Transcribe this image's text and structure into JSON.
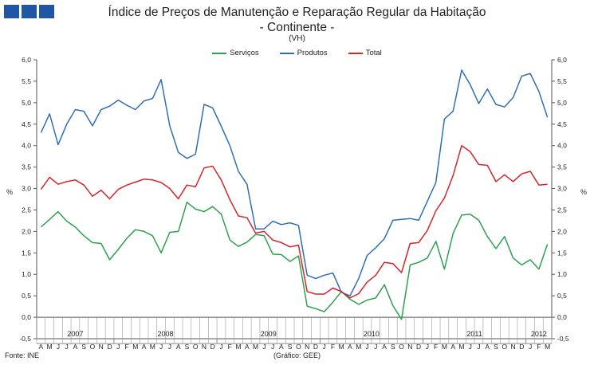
{
  "header": {
    "title": "Índice de Preços de Manutenção e Reparação Regular da Habitação",
    "subtitle": "- Continente -",
    "unit": "(VH)"
  },
  "footer": {
    "source": "Fonte: INE",
    "credit": "(Gráfico: GEE)"
  },
  "colors": {
    "brand": "#1f57a4",
    "servicos": "#2ea04f",
    "produtos": "#2f6fb5",
    "total": "#d6242a"
  },
  "chart_data": {
    "type": "line",
    "title": "Índice de Preços de Manutenção e Reparação Regular da Habitação",
    "subtitle": "- Continente -",
    "unit_label": "(VH)",
    "ylabel_left": "%",
    "ylabel_right": "%",
    "ylim": [
      -0.5,
      6.0
    ],
    "yticks": [
      "-0,5",
      "0,0",
      "0,5",
      "1,0",
      "1,5",
      "2,0",
      "2,5",
      "3,0",
      "3,5",
      "4,0",
      "4,5",
      "5,0",
      "5,5",
      "6,0"
    ],
    "grid": false,
    "legend_position": "top-center",
    "x": [
      "A",
      "M",
      "J",
      "J",
      "A",
      "S",
      "O",
      "N",
      "D",
      "J",
      "F",
      "M",
      "A",
      "M",
      "J",
      "J",
      "A",
      "S",
      "O",
      "N",
      "D",
      "J",
      "F",
      "M",
      "A",
      "M",
      "J",
      "J",
      "A",
      "S",
      "O",
      "N",
      "D",
      "J",
      "F",
      "M",
      "A",
      "M",
      "J",
      "J",
      "A",
      "S",
      "O",
      "N",
      "D",
      "J",
      "F",
      "M",
      "A",
      "M",
      "J",
      "J",
      "A",
      "S",
      "O",
      "N",
      "D",
      "J",
      "F",
      "M"
    ],
    "year_groups": [
      {
        "label": "2007",
        "start": 0,
        "end": 8
      },
      {
        "label": "2008",
        "start": 9,
        "end": 20
      },
      {
        "label": "2009",
        "start": 21,
        "end": 32
      },
      {
        "label": "2010",
        "start": 33,
        "end": 44
      },
      {
        "label": "2011",
        "start": 45,
        "end": 56
      },
      {
        "label": "2012",
        "start": 57,
        "end": 59
      }
    ],
    "series": [
      {
        "name": "Serviços",
        "color": "#2ea04f",
        "values": [
          2.1,
          2.28,
          2.46,
          2.24,
          2.1,
          1.9,
          1.74,
          1.72,
          1.34,
          1.58,
          1.84,
          2.04,
          2.0,
          1.9,
          1.5,
          1.98,
          2.0,
          2.68,
          2.52,
          2.46,
          2.58,
          2.4,
          1.8,
          1.65,
          1.75,
          1.93,
          1.9,
          1.47,
          1.46,
          1.3,
          1.43,
          0.26,
          0.2,
          0.13,
          0.35,
          0.6,
          0.42,
          0.3,
          0.4,
          0.45,
          0.76,
          0.27,
          -0.05,
          1.22,
          1.28,
          1.38,
          1.77,
          1.12,
          1.95,
          2.38,
          2.4,
          2.26,
          1.88,
          1.6,
          1.88,
          1.38,
          1.22,
          1.34,
          1.12,
          1.7
        ]
      },
      {
        "name": "Produtos",
        "color": "#2f6fb5",
        "values": [
          4.3,
          4.74,
          4.02,
          4.5,
          4.84,
          4.8,
          4.46,
          4.84,
          4.92,
          5.06,
          4.94,
          4.84,
          5.04,
          5.1,
          5.54,
          4.46,
          3.84,
          3.7,
          3.8,
          4.96,
          4.88,
          4.45,
          4.0,
          3.4,
          3.1,
          2.06,
          2.06,
          2.24,
          2.16,
          2.2,
          2.14,
          0.98,
          0.9,
          0.98,
          1.03,
          0.58,
          0.5,
          0.9,
          1.44,
          1.62,
          1.83,
          2.26,
          2.28,
          2.3,
          2.26,
          2.7,
          3.14,
          4.62,
          4.8,
          5.76,
          5.42,
          4.98,
          5.32,
          4.96,
          4.9,
          5.12,
          5.62,
          5.68,
          5.26,
          4.66
        ]
      },
      {
        "name": "Total",
        "color": "#d6242a",
        "values": [
          2.98,
          3.26,
          3.1,
          3.16,
          3.2,
          3.08,
          2.82,
          2.96,
          2.76,
          2.98,
          3.08,
          3.15,
          3.22,
          3.2,
          3.14,
          3.0,
          2.76,
          3.08,
          3.04,
          3.48,
          3.52,
          3.2,
          2.74,
          2.36,
          2.32,
          1.96,
          2.0,
          1.8,
          1.74,
          1.64,
          1.68,
          0.6,
          0.54,
          0.54,
          0.68,
          0.6,
          0.45,
          0.55,
          0.82,
          0.98,
          1.28,
          1.25,
          1.04,
          1.72,
          1.74,
          2.02,
          2.48,
          2.78,
          3.3,
          4.0,
          3.86,
          3.56,
          3.54,
          3.16,
          3.32,
          3.16,
          3.34,
          3.4,
          3.08,
          3.1
        ]
      }
    ]
  }
}
